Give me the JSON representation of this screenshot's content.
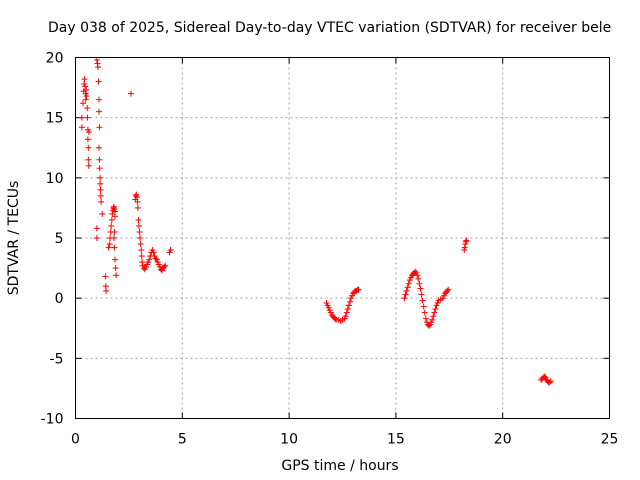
{
  "chart_data": {
    "type": "scatter",
    "title": "Day 038 of 2025, Sidereal Day-to-day VTEC variation (SDTVAR) for receiver bele",
    "xlabel": "GPS time / hours",
    "ylabel": "SDTVAR / TECUs",
    "xlim": [
      0,
      25
    ],
    "ylim": [
      -10,
      20
    ],
    "xticks": [
      0,
      5,
      10,
      15,
      20,
      25
    ],
    "yticks": [
      -10,
      -5,
      0,
      5,
      10,
      15,
      20
    ],
    "grid": true,
    "marker": "+",
    "color": "#ff0000",
    "series": [
      {
        "name": "SDTVAR",
        "points": [
          [
            0.3,
            14.2
          ],
          [
            0.3,
            15.0
          ],
          [
            0.35,
            16.2
          ],
          [
            0.38,
            17.2
          ],
          [
            0.4,
            17.8
          ],
          [
            0.42,
            18.2
          ],
          [
            0.45,
            17.6
          ],
          [
            0.47,
            17.0
          ],
          [
            0.48,
            16.5
          ],
          [
            0.5,
            17.3
          ],
          [
            0.52,
            16.8
          ],
          [
            0.55,
            15.8
          ],
          [
            0.56,
            15.0
          ],
          [
            0.58,
            14.0
          ],
          [
            0.58,
            13.2
          ],
          [
            0.6,
            12.5
          ],
          [
            0.6,
            11.5
          ],
          [
            0.62,
            11.0
          ],
          [
            0.63,
            13.8
          ],
          [
            1.0,
            19.8
          ],
          [
            1.03,
            19.5
          ],
          [
            1.05,
            19.2
          ],
          [
            1.08,
            18.0
          ],
          [
            1.1,
            16.5
          ],
          [
            1.1,
            15.5
          ],
          [
            1.12,
            14.2
          ],
          [
            1.1,
            12.5
          ],
          [
            1.12,
            11.5
          ],
          [
            1.13,
            10.8
          ],
          [
            1.15,
            10.0
          ],
          [
            1.15,
            9.5
          ],
          [
            1.17,
            9.0
          ],
          [
            1.18,
            8.5
          ],
          [
            1.2,
            8.0
          ],
          [
            1.25,
            7.0
          ],
          [
            1.0,
            5.8
          ],
          [
            1.0,
            5.0
          ],
          [
            1.4,
            1.8
          ],
          [
            1.42,
            1.0
          ],
          [
            1.43,
            0.6
          ],
          [
            1.55,
            4.2
          ],
          [
            1.6,
            4.5
          ],
          [
            1.62,
            5.0
          ],
          [
            1.65,
            5.5
          ],
          [
            1.67,
            6.0
          ],
          [
            1.7,
            6.5
          ],
          [
            1.72,
            7.0
          ],
          [
            1.75,
            7.3
          ],
          [
            1.78,
            7.5
          ],
          [
            1.8,
            7.6
          ],
          [
            1.82,
            7.4
          ],
          [
            1.85,
            7.2
          ],
          [
            1.85,
            6.8
          ],
          [
            1.82,
            5.5
          ],
          [
            1.8,
            5.0
          ],
          [
            1.82,
            4.2
          ],
          [
            1.85,
            3.2
          ],
          [
            1.88,
            2.5
          ],
          [
            1.9,
            1.9
          ],
          [
            2.6,
            17.0
          ],
          [
            2.8,
            8.2
          ],
          [
            2.82,
            8.5
          ],
          [
            2.85,
            8.6
          ],
          [
            2.88,
            8.4
          ],
          [
            2.9,
            8.0
          ],
          [
            2.92,
            7.5
          ],
          [
            2.95,
            6.5
          ],
          [
            2.97,
            6.0
          ],
          [
            3.0,
            5.5
          ],
          [
            3.02,
            5.0
          ],
          [
            3.05,
            4.5
          ],
          [
            3.08,
            4.0
          ],
          [
            3.1,
            3.5
          ],
          [
            3.12,
            3.0
          ],
          [
            3.15,
            2.7
          ],
          [
            3.2,
            2.5
          ],
          [
            3.25,
            2.4
          ],
          [
            3.3,
            2.6
          ],
          [
            3.35,
            2.8
          ],
          [
            3.4,
            3.0
          ],
          [
            3.45,
            3.2
          ],
          [
            3.5,
            3.5
          ],
          [
            3.55,
            3.8
          ],
          [
            3.6,
            4.0
          ],
          [
            3.65,
            3.8
          ],
          [
            3.7,
            3.5
          ],
          [
            3.75,
            3.3
          ],
          [
            3.8,
            3.2
          ],
          [
            3.85,
            3.0
          ],
          [
            3.9,
            2.8
          ],
          [
            3.95,
            2.6
          ],
          [
            4.0,
            2.4
          ],
          [
            4.05,
            2.3
          ],
          [
            4.1,
            2.5
          ],
          [
            4.15,
            2.6
          ],
          [
            4.2,
            2.7
          ],
          [
            4.4,
            3.8
          ],
          [
            4.45,
            4.0
          ],
          [
            11.75,
            -0.4
          ],
          [
            11.8,
            -0.6
          ],
          [
            11.85,
            -0.8
          ],
          [
            11.9,
            -1.0
          ],
          [
            11.95,
            -1.2
          ],
          [
            12.0,
            -1.4
          ],
          [
            12.05,
            -1.5
          ],
          [
            12.1,
            -1.6
          ],
          [
            12.15,
            -1.7
          ],
          [
            12.2,
            -1.8
          ],
          [
            12.3,
            -1.8
          ],
          [
            12.4,
            -1.9
          ],
          [
            12.5,
            -1.8
          ],
          [
            12.6,
            -1.7
          ],
          [
            12.65,
            -1.5
          ],
          [
            12.7,
            -1.2
          ],
          [
            12.75,
            -0.9
          ],
          [
            12.8,
            -0.6
          ],
          [
            12.85,
            -0.3
          ],
          [
            12.9,
            0.0
          ],
          [
            12.95,
            0.2
          ],
          [
            13.0,
            0.4
          ],
          [
            13.05,
            0.5
          ],
          [
            13.1,
            0.6
          ],
          [
            13.15,
            0.6
          ],
          [
            13.2,
            0.7
          ],
          [
            13.25,
            0.7
          ],
          [
            15.4,
            0.0
          ],
          [
            15.45,
            0.3
          ],
          [
            15.5,
            0.6
          ],
          [
            15.55,
            0.9
          ],
          [
            15.6,
            1.2
          ],
          [
            15.65,
            1.5
          ],
          [
            15.7,
            1.7
          ],
          [
            15.75,
            1.9
          ],
          [
            15.8,
            2.0
          ],
          [
            15.85,
            2.1
          ],
          [
            15.9,
            2.2
          ],
          [
            15.95,
            2.1
          ],
          [
            16.0,
            1.9
          ],
          [
            16.05,
            1.6
          ],
          [
            16.1,
            1.2
          ],
          [
            16.15,
            0.8
          ],
          [
            16.2,
            0.3
          ],
          [
            16.25,
            -0.2
          ],
          [
            16.3,
            -0.7
          ],
          [
            16.35,
            -1.2
          ],
          [
            16.4,
            -1.7
          ],
          [
            16.45,
            -2.0
          ],
          [
            16.5,
            -2.2
          ],
          [
            16.55,
            -2.3
          ],
          [
            16.6,
            -2.2
          ],
          [
            16.65,
            -2.0
          ],
          [
            16.7,
            -1.8
          ],
          [
            16.75,
            -1.5
          ],
          [
            16.8,
            -1.2
          ],
          [
            16.85,
            -0.9
          ],
          [
            16.9,
            -0.6
          ],
          [
            16.95,
            -0.4
          ],
          [
            17.0,
            -0.2
          ],
          [
            17.1,
            -0.1
          ],
          [
            17.2,
            0.0
          ],
          [
            17.25,
            0.2
          ],
          [
            17.3,
            0.4
          ],
          [
            17.35,
            0.5
          ],
          [
            17.4,
            0.6
          ],
          [
            17.45,
            0.7
          ],
          [
            18.2,
            4.0
          ],
          [
            18.22,
            4.2
          ],
          [
            18.25,
            4.5
          ],
          [
            18.27,
            4.7
          ],
          [
            18.3,
            4.8
          ],
          [
            21.8,
            -6.8
          ],
          [
            21.85,
            -6.7
          ],
          [
            21.9,
            -6.6
          ],
          [
            21.95,
            -6.5
          ],
          [
            22.0,
            -6.6
          ],
          [
            22.05,
            -6.8
          ],
          [
            22.1,
            -6.9
          ],
          [
            22.15,
            -7.0
          ],
          [
            22.2,
            -7.0
          ],
          [
            22.25,
            -6.9
          ]
        ]
      }
    ]
  }
}
